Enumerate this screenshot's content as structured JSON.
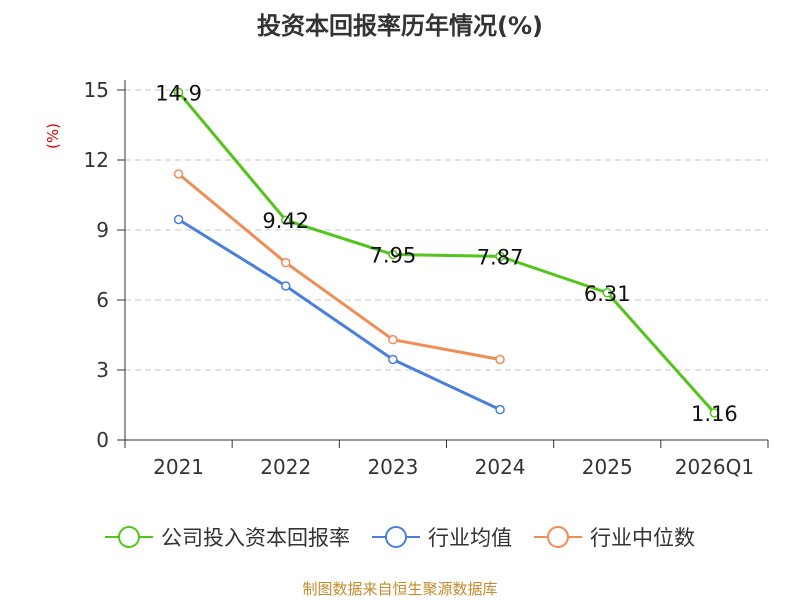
{
  "chart_data": {
    "type": "line",
    "title": "投资本回报率历年情况(%)",
    "ylabel": "(%)",
    "xlabel": "",
    "categories": [
      "2021",
      "2022",
      "2023",
      "2024",
      "2025",
      "2026Q1"
    ],
    "ylim": [
      0,
      15
    ],
    "yticks": [
      0,
      3,
      6,
      9,
      12,
      15
    ],
    "grid": true,
    "legend_position": "bottom",
    "series": [
      {
        "name": "公司投入资本回报率",
        "color": "#52c41a",
        "values": [
          14.9,
          9.42,
          7.95,
          7.87,
          6.31,
          1.16
        ],
        "labels": [
          "14.9",
          "9.42",
          "7.95",
          "7.87",
          "6.31",
          "1.16"
        ]
      },
      {
        "name": "行业均值",
        "color": "#4a7fdc",
        "values": [
          9.45,
          6.6,
          3.45,
          1.3,
          null,
          null
        ]
      },
      {
        "name": "行业中位数",
        "color": "#f08c55",
        "values": [
          11.4,
          7.6,
          4.3,
          3.45,
          null,
          null
        ]
      }
    ],
    "source": "制图数据来自恒生聚源数据库"
  }
}
